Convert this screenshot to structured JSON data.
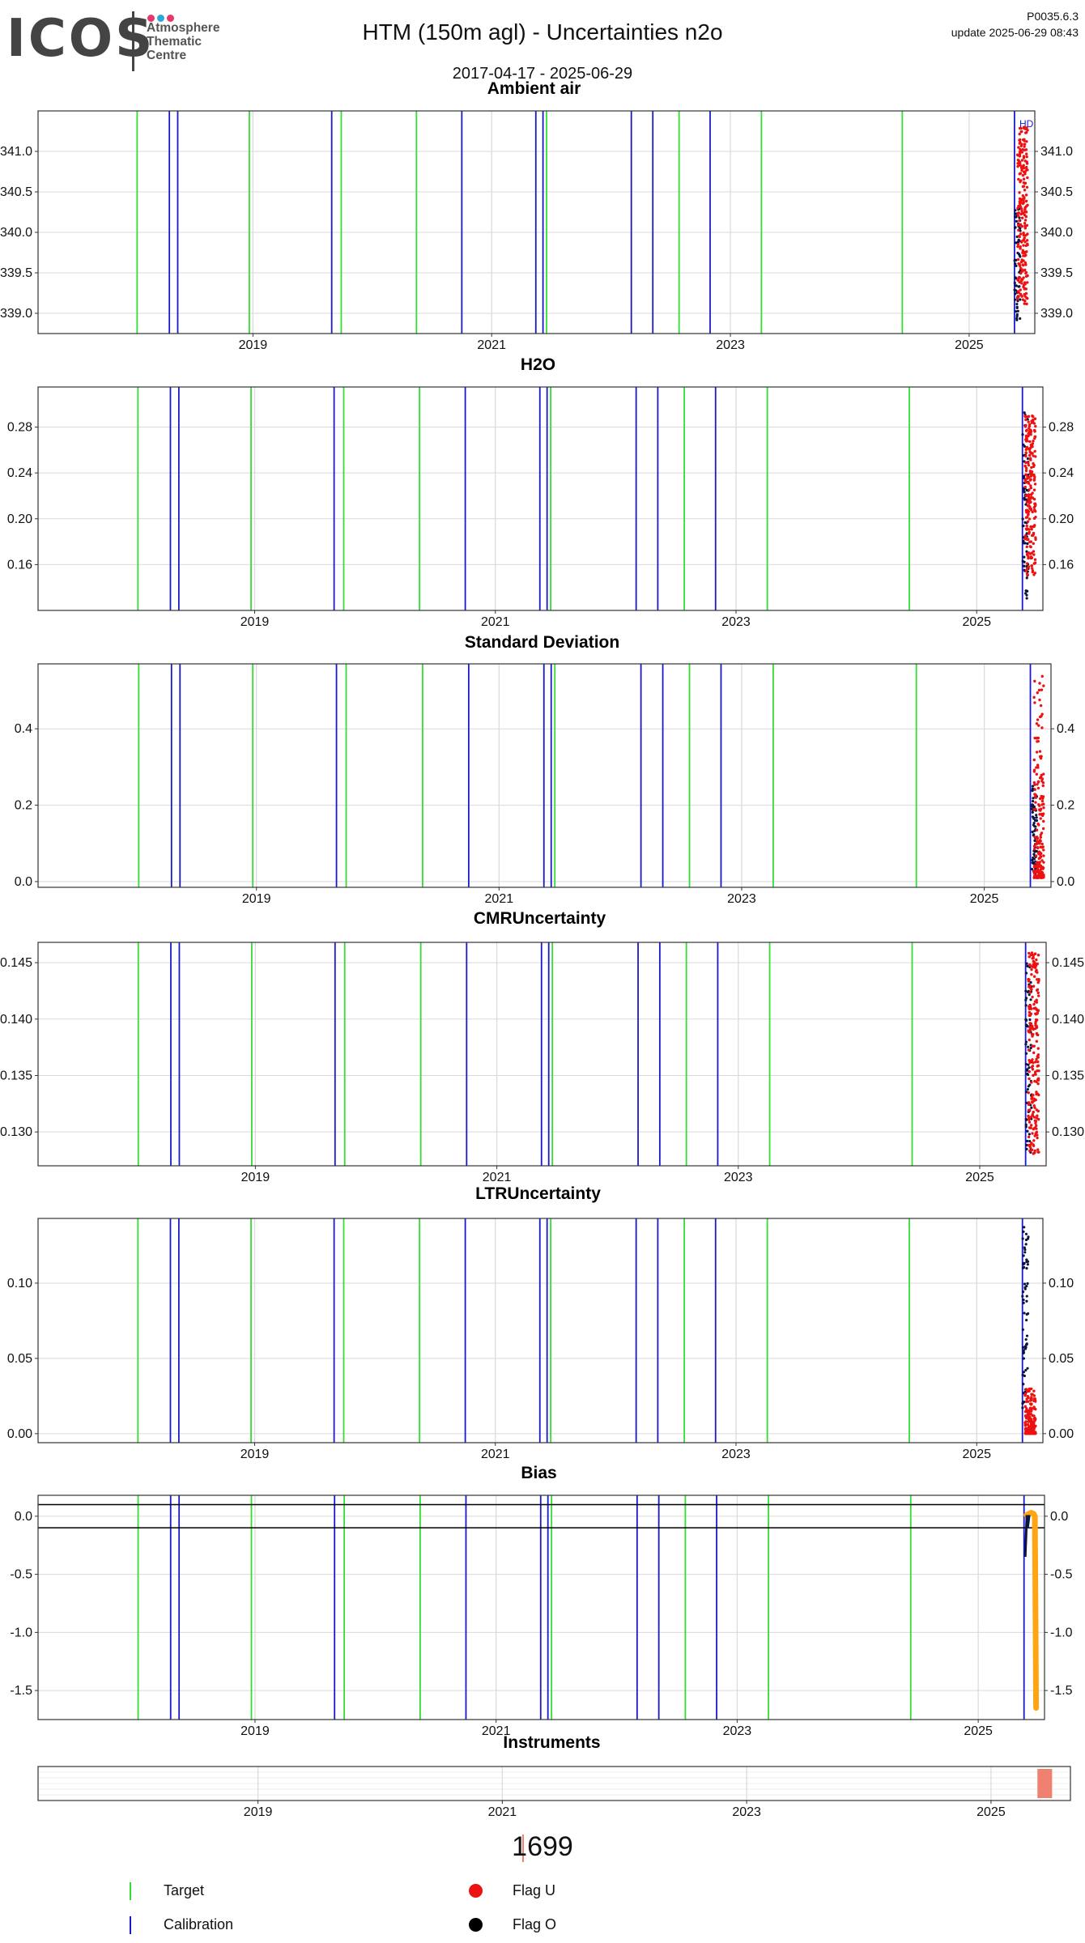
{
  "header": {
    "logo_text": "ICOS",
    "logo_subtitle": [
      "Atmosphere",
      "Thematic",
      "Centre"
    ],
    "logo_dot_colors": [
      "#e8366b",
      "#2aa9d8",
      "#e8366b"
    ],
    "title": "HTM  (150m agl) - Uncertainties n2o",
    "date_range": "2017-04-17 - 2025-06-29",
    "version": "P0035.6.3",
    "update": "update  2025-06-29 08:43"
  },
  "colors": {
    "target": "#33dd33",
    "calibration": "#1a1acc",
    "flag_u": "#ee1111",
    "flag_o": "#000000",
    "bias_line": "#ffa514",
    "instrument": "#f08070",
    "grid": "#d9d9d9"
  },
  "event_lines": {
    "target_dates": [
      2018.03,
      2018.97,
      2019.74,
      2020.37,
      2021.46,
      2022.57,
      2023.26,
      2024.44
    ],
    "calibration_dates": [
      2018.3,
      2018.37,
      2019.66,
      2020.75,
      2021.37,
      2021.43,
      2022.17,
      2022.35,
      2022.83,
      2025.38
    ],
    "label": "HD"
  },
  "chart_data": [
    {
      "type": "scatter",
      "title": "Ambient air",
      "xlabel": "",
      "ylabel": "",
      "xlim": [
        2017.2,
        2025.55
      ],
      "ylim": [
        338.75,
        341.5
      ],
      "yticks": [
        339.0,
        339.5,
        340.0,
        340.5,
        341.0
      ],
      "ytick_labels": [
        "339.0",
        "339.5",
        "340.0",
        "340.5",
        "341.0"
      ],
      "xticks": [
        2019,
        2021,
        2023,
        2025
      ],
      "xtick_labels": [
        "2019",
        "2021",
        "2023",
        "2025"
      ],
      "right_axis": true,
      "cluster": {
        "x_range": [
          2025.38,
          2025.49
        ],
        "flag_o_range": [
          338.9,
          340.3
        ],
        "flag_u_range": [
          339.1,
          341.3
        ]
      }
    },
    {
      "type": "scatter",
      "title": "H2O",
      "xlabel": "",
      "ylabel": "",
      "xlim": [
        2017.2,
        2025.55
      ],
      "ylim": [
        0.12,
        0.315
      ],
      "yticks": [
        0.16,
        0.2,
        0.24,
        0.28
      ],
      "ytick_labels": [
        "0.16",
        "0.20",
        "0.24",
        "0.28"
      ],
      "xticks": [
        2019,
        2021,
        2023,
        2025
      ],
      "xtick_labels": [
        "2019",
        "2021",
        "2023",
        "2025"
      ],
      "right_axis": true,
      "cluster": {
        "x_range": [
          2025.38,
          2025.49
        ],
        "flag_o_range": [
          0.13,
          0.3
        ],
        "flag_u_range": [
          0.15,
          0.29
        ]
      }
    },
    {
      "type": "scatter",
      "title": "Standard Deviation",
      "xlabel": "",
      "ylabel": "",
      "xlim": [
        2017.2,
        2025.55
      ],
      "ylim": [
        -0.015,
        0.57
      ],
      "yticks": [
        0.0,
        0.2,
        0.4
      ],
      "ytick_labels": [
        "0.0",
        "0.2",
        "0.4"
      ],
      "xticks": [
        2019,
        2021,
        2023,
        2025
      ],
      "xtick_labels": [
        "2019",
        "2021",
        "2023",
        "2025"
      ],
      "right_axis": true,
      "cluster": {
        "x_range": [
          2025.39,
          2025.49
        ],
        "flag_o_range": [
          0.02,
          0.25
        ],
        "flag_u_range": [
          0.01,
          0.55
        ]
      }
    },
    {
      "type": "scatter",
      "title": "CMRUncertainty",
      "xlabel": "",
      "ylabel": "",
      "xlim": [
        2017.2,
        2025.55
      ],
      "ylim": [
        0.127,
        0.1468
      ],
      "yticks": [
        0.13,
        0.135,
        0.14,
        0.145
      ],
      "ytick_labels": [
        "0.130",
        "0.135",
        "0.140",
        "0.145"
      ],
      "xticks": [
        2019,
        2021,
        2023,
        2025
      ],
      "xtick_labels": [
        "2019",
        "2021",
        "2023",
        "2025"
      ],
      "right_axis": true,
      "cluster": {
        "x_range": [
          2025.38,
          2025.49
        ],
        "flag_o_range": [
          0.128,
          0.145
        ],
        "flag_u_range": [
          0.128,
          0.146
        ]
      }
    },
    {
      "type": "scatter",
      "title": "LTRUncertainty",
      "xlabel": "",
      "ylabel": "",
      "xlim": [
        2017.2,
        2025.55
      ],
      "ylim": [
        -0.006,
        0.143
      ],
      "yticks": [
        0.0,
        0.05,
        0.1
      ],
      "ytick_labels": [
        "0.00",
        "0.05",
        "0.10"
      ],
      "xticks": [
        2019,
        2021,
        2023,
        2025
      ],
      "xtick_labels": [
        "2019",
        "2021",
        "2023",
        "2025"
      ],
      "right_axis": true,
      "cluster": {
        "x_range": [
          2025.38,
          2025.49
        ],
        "flag_o_range": [
          0.0,
          0.138
        ],
        "flag_u_range": [
          0.0,
          0.03
        ]
      }
    },
    {
      "type": "line",
      "title": "Bias",
      "xlabel": "",
      "ylabel": "",
      "xlim": [
        2017.2,
        2025.55
      ],
      "ylim": [
        -1.75,
        0.18
      ],
      "yticks": [
        -1.5,
        -1.0,
        -0.5,
        0.0
      ],
      "ytick_labels": [
        "-1.5",
        "-1.0",
        "-0.5",
        "0.0"
      ],
      "xticks": [
        2019,
        2021,
        2023,
        2025
      ],
      "xtick_labels": [
        "2019",
        "2021",
        "2023",
        "2025"
      ],
      "right_axis": true,
      "hlines": [
        0.1,
        -0.1
      ],
      "series": [
        {
          "x": [
            2025.4,
            2025.42,
            2025.44,
            2025.46,
            2025.47,
            2025.475,
            2025.48
          ],
          "y": [
            0.01,
            0.02,
            0.03,
            0.02,
            0.0,
            -0.8,
            -1.65
          ]
        }
      ],
      "flag_o_x": [
        2025.39,
        2025.41
      ],
      "flag_o_y": [
        -0.35,
        -0.1
      ]
    },
    {
      "type": "bar",
      "title": "Instruments",
      "xlabel": "",
      "ylabel": "",
      "xlim": [
        2017.2,
        2025.65
      ],
      "xticks": [
        2019,
        2021,
        2023,
        2025
      ],
      "xtick_labels": [
        "2019",
        "2021",
        "2023",
        "2025"
      ],
      "bars": [
        {
          "start": 2025.38,
          "end": 2025.5,
          "label": "1699"
        }
      ]
    }
  ],
  "footer": {
    "instrument_id": "1699",
    "legend": [
      {
        "label": "Target",
        "kind": "line",
        "color": "#33dd33"
      },
      {
        "label": "Calibration",
        "kind": "line",
        "color": "#1a1acc"
      },
      {
        "label": "Flag U",
        "kind": "dot",
        "color": "#ee1111"
      },
      {
        "label": "Flag O",
        "kind": "dot",
        "color": "#000000"
      }
    ]
  }
}
